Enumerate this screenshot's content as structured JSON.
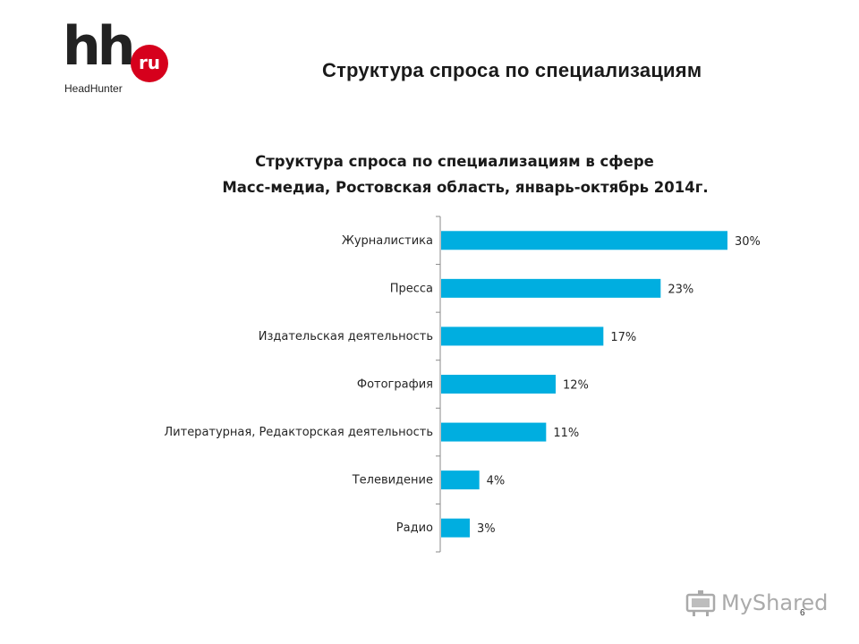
{
  "logo": {
    "mark": "hh",
    "badge": "ru",
    "name": "HeadHunter"
  },
  "page_title": "Структура спроса по специализациям",
  "chart_data": {
    "type": "bar",
    "orientation": "horizontal",
    "title_line1": "Структура спроса по специализациям в сфере",
    "title_line2": "Масс-медиа, Ростовская область, январь-октябрь 2014г.",
    "categories": [
      "Журналистика",
      "Пресса",
      "Издательская деятельность",
      "Фотография",
      "Литературная, Редакторская деятельность",
      "Телевидение",
      "Радио"
    ],
    "values": [
      30,
      23,
      17,
      12,
      11,
      4,
      3
    ],
    "labels": [
      "30%",
      "23%",
      "17%",
      "12%",
      "11%",
      "4%",
      "3%"
    ],
    "unit": "%",
    "xlim": [
      0,
      30
    ],
    "bar_color": "#00aee0",
    "grid": false,
    "legend": "none"
  },
  "watermark": {
    "text": "MyShared",
    "icon": "projector-icon"
  },
  "page_number": "6"
}
